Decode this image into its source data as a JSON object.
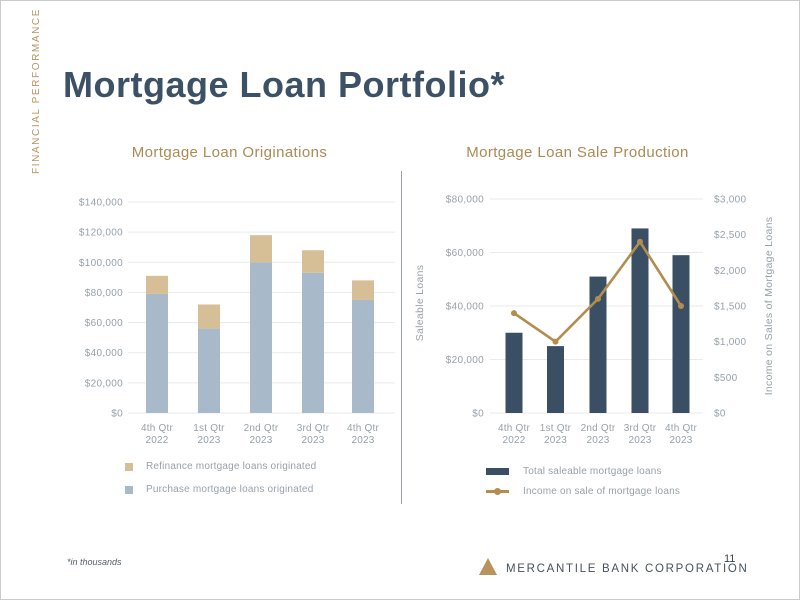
{
  "sidebar_label": "FINANCIAL PERFORMANCE",
  "slide_title": "Mortgage Loan Portfolio*",
  "footnote": "*in thousands",
  "footer": {
    "company_name": "MERCANTILE BANK CORPORATION",
    "page_number": "11",
    "logo_icon": "triangle-icon"
  },
  "colors": {
    "accent_gold": "#b8935e",
    "chart_title_gold": "#ac8a54",
    "title_navy": "#3d5166",
    "axis_text": "#97a1aa",
    "gridline": "#e8eaed",
    "divider": "#9aa0a6",
    "purchase_blue": "#a8bac9",
    "refinance_tan": "#d6bf97",
    "saleable_navy": "#3a4f63",
    "income_gold": "#b38d4f"
  },
  "chart_data": [
    {
      "type": "bar",
      "stacked": true,
      "title": "Mortgage Loan Originations",
      "categories": [
        "4th Qtr 2022",
        "1st Qtr 2023",
        "2nd Qtr 2023",
        "3rd Qtr 2023",
        "4th Qtr 2023"
      ],
      "series": [
        {
          "name": "Purchase mortgage loans originated",
          "values": [
            79000,
            56000,
            100000,
            93000,
            75000
          ],
          "color": "#a8bac9"
        },
        {
          "name": "Refinance mortgage loans originated",
          "values": [
            12000,
            16000,
            18000,
            15000,
            13000
          ],
          "color": "#d6bf97"
        }
      ],
      "ylim": [
        0,
        140000
      ],
      "ytick_step": 20000,
      "yticks": [
        "$140,000",
        "$120,000",
        "$100,000",
        "$80,000",
        "$60,000",
        "$40,000",
        "$20,000",
        "$0"
      ],
      "grid": true,
      "legend_position": "bottom-left",
      "legend": [
        {
          "label": "Refinance mortgage loans originated",
          "color": "#d6bf97",
          "shape": "square"
        },
        {
          "label": "Purchase mortgage loans originated",
          "color": "#a8bac9",
          "shape": "square"
        }
      ]
    },
    {
      "type": "bar+line",
      "title": "Mortgage Loan Sale Production",
      "categories": [
        "4th Qtr 2022",
        "1st Qtr 2023",
        "2nd Qtr 2023",
        "3rd Qtr 2023",
        "4th Qtr 2023"
      ],
      "bar_series": {
        "name": "Total saleable mortgage loans",
        "values": [
          30000,
          25000,
          51000,
          69000,
          59000
        ],
        "color": "#3a4f63",
        "axis": "left"
      },
      "line_series": {
        "name": "Income on sale of mortgage loans",
        "values": [
          1400,
          1000,
          1600,
          2400,
          1500
        ],
        "color": "#b38d4f",
        "axis": "right"
      },
      "y_left": {
        "label": "Saleable Loans",
        "lim": [
          0,
          80000
        ],
        "tick_step": 20000,
        "ticks": [
          "$80,000",
          "$60,000",
          "$40,000",
          "$20,000",
          "$0"
        ]
      },
      "y_right": {
        "label": "Income on Sales of Mortgage Loans",
        "lim": [
          0,
          3000
        ],
        "tick_step": 500,
        "ticks": [
          "$3,000",
          "$2,500",
          "$2,000",
          "$1,500",
          "$1,000",
          "$500",
          "$0"
        ]
      },
      "grid": true,
      "legend_position": "bottom-center",
      "legend": [
        {
          "label": "Total saleable mortgage loans",
          "color": "#3a4f63",
          "shape": "bar"
        },
        {
          "label": "Income on sale of mortgage loans",
          "color": "#b38d4f",
          "shape": "line-dot"
        }
      ]
    }
  ]
}
